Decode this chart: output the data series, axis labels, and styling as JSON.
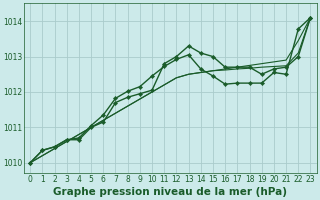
{
  "title": "Graphe pression niveau de la mer (hPa)",
  "background_color": "#cceaea",
  "grid_color": "#aacccc",
  "line_color": "#1a5c2a",
  "xlim": [
    -0.5,
    23.5
  ],
  "ylim": [
    1009.7,
    1014.5
  ],
  "yticks": [
    1010,
    1011,
    1012,
    1013,
    1014
  ],
  "xticks": [
    0,
    1,
    2,
    3,
    4,
    5,
    6,
    7,
    8,
    9,
    10,
    11,
    12,
    13,
    14,
    15,
    16,
    17,
    18,
    19,
    20,
    21,
    22,
    23
  ],
  "series": [
    {
      "y": [
        1010.0,
        1010.35,
        1010.45,
        1010.65,
        1010.65,
        1011.0,
        1011.15,
        1011.7,
        1011.85,
        1011.95,
        1012.05,
        1012.8,
        1013.0,
        1013.3,
        1013.1,
        1013.0,
        1012.7,
        1012.7,
        1012.7,
        1012.5,
        1012.65,
        1012.7,
        1013.0,
        1014.1
      ],
      "marker": true,
      "linewidth": 1.0
    },
    {
      "y": [
        1010.0,
        1010.2,
        1010.4,
        1010.6,
        1010.8,
        1011.0,
        1011.2,
        1011.4,
        1011.6,
        1011.8,
        1012.0,
        1012.2,
        1012.4,
        1012.5,
        1012.55,
        1012.6,
        1012.65,
        1012.7,
        1012.75,
        1012.8,
        1012.85,
        1012.9,
        1013.45,
        1014.1
      ],
      "marker": false,
      "linewidth": 0.8
    },
    {
      "y": [
        1010.0,
        1010.2,
        1010.4,
        1010.6,
        1010.8,
        1011.0,
        1011.2,
        1011.4,
        1011.6,
        1011.8,
        1012.0,
        1012.2,
        1012.4,
        1012.5,
        1012.55,
        1012.6,
        1012.62,
        1012.65,
        1012.67,
        1012.7,
        1012.72,
        1012.74,
        1013.1,
        1014.1
      ],
      "marker": false,
      "linewidth": 0.8
    },
    {
      "y": [
        1010.0,
        1010.35,
        1010.45,
        1010.65,
        1010.7,
        1011.05,
        1011.35,
        1011.82,
        1012.02,
        1012.15,
        1012.45,
        1012.72,
        1012.92,
        1013.05,
        1012.65,
        1012.45,
        1012.22,
        1012.25,
        1012.25,
        1012.25,
        1012.55,
        1012.5,
        1013.78,
        1014.1
      ],
      "marker": true,
      "linewidth": 1.0
    }
  ],
  "font_color": "#1a5c2a",
  "title_fontsize": 7.5,
  "tick_fontsize": 5.5
}
